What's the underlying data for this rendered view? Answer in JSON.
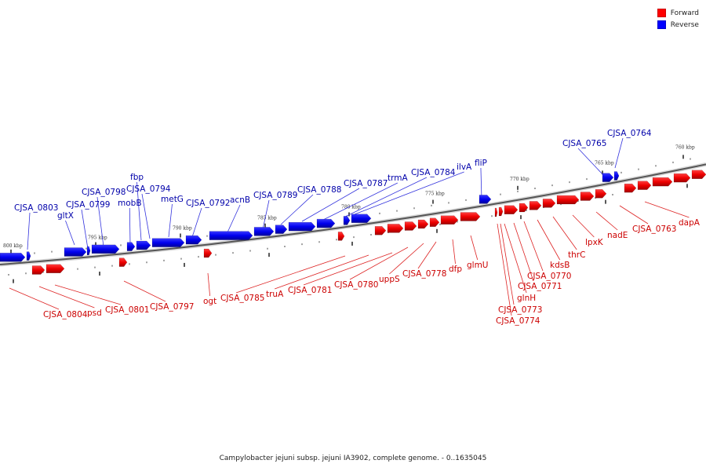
{
  "legend": [
    {
      "label": "Forward",
      "color": "#ff0000"
    },
    {
      "label": "Reverse",
      "color": "#0000ff"
    }
  ],
  "caption": "Campylobacter jejuni subsp. jejuni IA3902, complete genome. - 0..1635045",
  "ticks": [
    "800 kbp",
    "795 kbp",
    "790 kbp",
    "785 kbp",
    "780 kbp",
    "775 kbp",
    "770 kbp",
    "765 kbp",
    "760 kbp"
  ],
  "reverse_labels": [
    "CJSA_0803",
    "gltX",
    "CJSA_0799",
    "CJSA_0798",
    "mobB",
    "fbp",
    "CJSA_0794",
    "metG",
    "CJSA_0792",
    "acnB",
    "CJSA_0789",
    "CJSA_0788",
    "CJSA_0787",
    "trmA",
    "CJSA_0784",
    "ilvA",
    "fliP",
    "CJSA_0765",
    "CJSA_0764"
  ],
  "forward_labels": [
    "CJSA_0804",
    "psd",
    "CJSA_0801",
    "CJSA_0797",
    "ogt",
    "CJSA_0785",
    "truA",
    "CJSA_0781",
    "CJSA_0780",
    "uppS",
    "CJSA_0778",
    "dfp",
    "glmU",
    "CJSA_0774",
    "CJSA_0773",
    "glnH",
    "CJSA_0771",
    "CJSA_0770",
    "kdsB",
    "thrC",
    "lpxK",
    "nadE",
    "CJSA_0763",
    "dapA"
  ]
}
